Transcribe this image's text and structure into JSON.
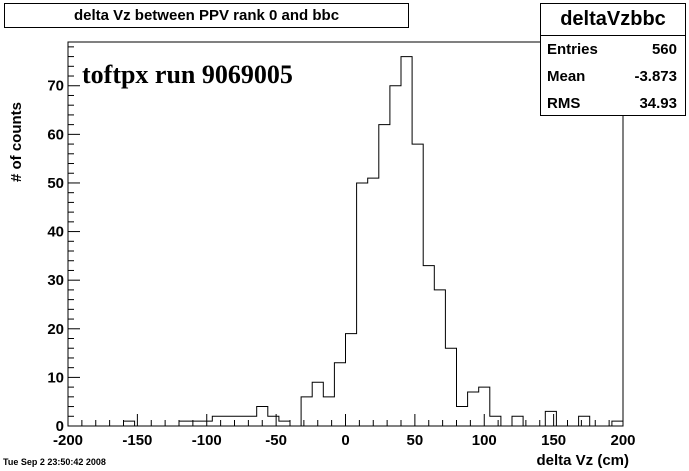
{
  "title": "delta Vz between PPV rank 0 and bbc",
  "stats": {
    "name": "deltaVzbbc",
    "rows": [
      {
        "label": "Entries",
        "value": "560"
      },
      {
        "label": "Mean",
        "value": "-3.873"
      },
      {
        "label": "RMS",
        "value": "34.93"
      }
    ]
  },
  "annotation": "toftpx run 9069005",
  "footer": "Tue Sep  2 23:50:42 2008",
  "chart_data": {
    "type": "bar",
    "style": "step-histogram",
    "xlabel": "delta Vz (cm)",
    "ylabel": "# of counts",
    "xlim": [
      -200,
      200
    ],
    "ylim": [
      0,
      79
    ],
    "bin_width": 8,
    "x_ticks": [
      -200,
      -150,
      -100,
      -50,
      0,
      50,
      100,
      150,
      200
    ],
    "y_ticks": [
      0,
      10,
      20,
      30,
      40,
      50,
      60,
      70
    ],
    "bin_edges_start": -200,
    "values": [
      0,
      0,
      0,
      0,
      0,
      1,
      0,
      0,
      0,
      0,
      1,
      1,
      1,
      2,
      2,
      2,
      2,
      4,
      2,
      1,
      0,
      6,
      9,
      6,
      13,
      19,
      50,
      51,
      62,
      70,
      76,
      58,
      33,
      28,
      16,
      4,
      7,
      8,
      2,
      0,
      2,
      0,
      0,
      3,
      0,
      0,
      2,
      0,
      0,
      1
    ]
  }
}
